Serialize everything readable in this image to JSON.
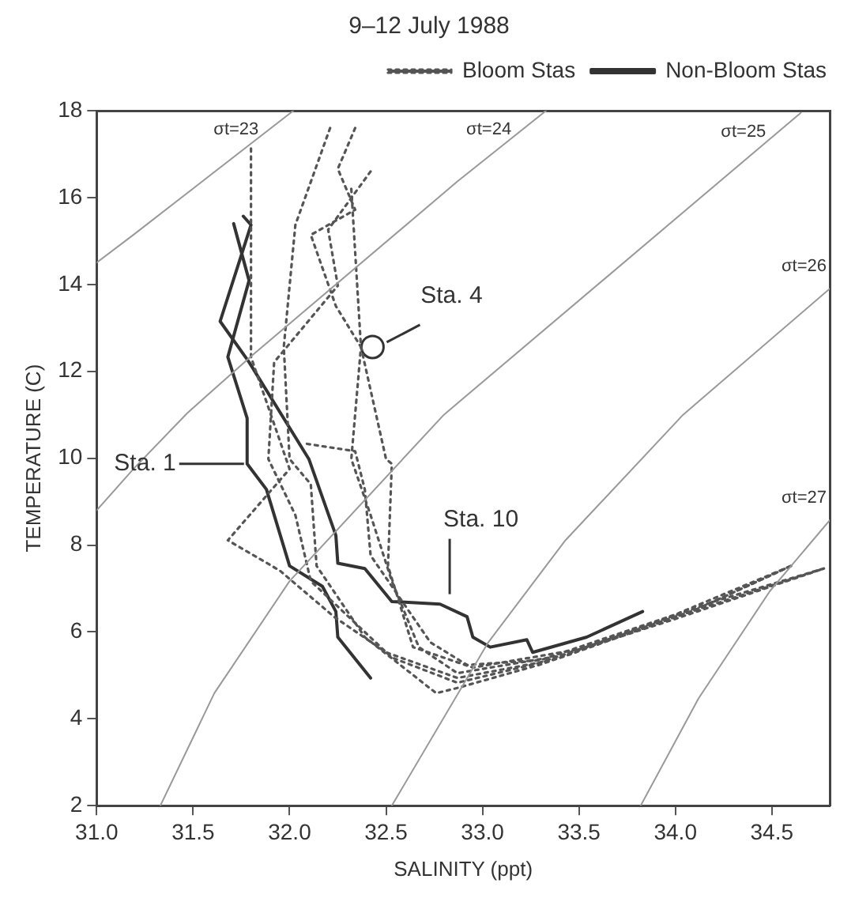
{
  "chart_data": {
    "type": "line",
    "title": "9–12 July 1988",
    "xlabel": "SALINITY (ppt)",
    "ylabel": "TEMPERATURE (C)",
    "xlim": [
      31.0,
      34.8
    ],
    "ylim": [
      2,
      18
    ],
    "xticks": [
      {
        "value": 31,
        "label": "31.0"
      },
      {
        "value": 31.5,
        "label": "31.5"
      },
      {
        "value": 32,
        "label": "32.0"
      },
      {
        "value": 32.5,
        "label": "32.5"
      },
      {
        "value": 33,
        "label": "33.0"
      },
      {
        "value": 33.5,
        "label": "33.5"
      },
      {
        "value": 34,
        "label": "34.0"
      },
      {
        "value": 34.5,
        "label": "34.5"
      }
    ],
    "yticks": [
      2,
      4,
      6,
      8,
      10,
      12,
      14,
      16,
      18
    ],
    "legend": "top right",
    "series": [
      {
        "name": "σt=23",
        "color": "#999999",
        "x": [
          31.0,
          31.19,
          32.02
        ],
        "values": [
          14.5,
          15.14,
          18
        ]
      },
      {
        "name": "σt=24",
        "color": "#999999",
        "x": [
          31.0,
          31.19,
          31.47,
          31.81,
          32.87,
          33.33
        ],
        "values": [
          8.8,
          9.75,
          11.04,
          12.38,
          16.37,
          18
        ]
      },
      {
        "name": "σt=25",
        "color": "#999999",
        "x": [
          31.33,
          31.61,
          32.0,
          32.8,
          34.65
        ],
        "values": [
          2,
          4.59,
          7.17,
          11.0,
          17.95
        ]
      },
      {
        "name": "σt=26",
        "color": "#999999",
        "x": [
          32.53,
          33.03,
          33.43,
          34.04,
          34.8
        ],
        "values": [
          2,
          5.76,
          8.11,
          11.0,
          13.9
        ]
      },
      {
        "name": "σt=27",
        "color": "#999999",
        "x": [
          33.82,
          34.12,
          34.49,
          34.8
        ],
        "values": [
          2,
          4.47,
          6.94,
          8.57
        ]
      },
      {
        "name": "Bloom Stas",
        "color": "#555555",
        "line_style": "dotted",
        "x": [
          31.8,
          31.8,
          32.0,
          31.68,
          31.95,
          32.23,
          32.5,
          32.87,
          33.3,
          34.0,
          34.77
        ],
        "values": [
          17.13,
          12.33,
          9.75,
          8.11,
          7.41,
          6.35,
          5.53,
          4.94,
          5.3,
          6.3,
          7.46
        ]
      },
      {
        "color": "#555555",
        "line_style": "dotted",
        "x": [
          32.34,
          32.25,
          32.34,
          32.11,
          32.24,
          32.37,
          32.32,
          32.42,
          32.53,
          32.67,
          32.87,
          33.4,
          34.1,
          34.6
        ],
        "values": [
          17.6,
          16.66,
          15.72,
          15.14,
          13.5,
          12.56,
          9.98,
          8.69,
          7.17,
          5.65,
          5.05,
          5.45,
          6.5,
          7.52
        ]
      },
      {
        "color": "#555555",
        "line_style": "dotted",
        "x": [
          32.21,
          32.03,
          31.97,
          32.0,
          32.11,
          32.14,
          32.39,
          32.76,
          32.87,
          33.3,
          34.0,
          34.77
        ],
        "values": [
          17.6,
          15.37,
          12.56,
          9.98,
          9.4,
          7.52,
          5.88,
          4.59,
          4.71,
          5.25,
          6.35,
          7.46
        ]
      },
      {
        "color": "#555555",
        "line_style": "dotted",
        "x": [
          32.42,
          32.2,
          32.25,
          31.92,
          31.89,
          32.03,
          32.11,
          32.53,
          32.87,
          33.4,
          34.1,
          34.6
        ],
        "values": [
          16.6,
          15.26,
          13.97,
          12.21,
          9.98,
          8.69,
          7.17,
          5.41,
          4.83,
          5.4,
          6.5,
          7.52
        ]
      },
      {
        "color": "#555555",
        "line_style": "dotted",
        "x": [
          32.32,
          32.37,
          32.5,
          32.53,
          32.51,
          32.64,
          32.95,
          33.5,
          34.2,
          34.77
        ],
        "values": [
          16.2,
          12.56,
          9.98,
          9.87,
          7.52,
          5.65,
          5.18,
          5.6,
          6.7,
          7.46
        ]
      },
      {
        "color": "#555555",
        "line_style": "dotted",
        "x": [
          32.09,
          32.34,
          32.39,
          32.42,
          32.73,
          32.92,
          33.3,
          34.0,
          34.6
        ],
        "values": [
          10.33,
          10.16,
          9.28,
          7.76,
          5.76,
          5.24,
          5.35,
          6.4,
          7.52
        ]
      },
      {
        "name": "Non-Bloom Stas",
        "color": "#333333",
        "line_style": "solid",
        "x": [
          31.71,
          31.79,
          31.68,
          31.78,
          31.78,
          31.88,
          32.0,
          32.17,
          32.24,
          32.25,
          32.42
        ],
        "values": [
          15.4,
          14.09,
          12.33,
          10.92,
          9.87,
          9.28,
          7.52,
          7.05,
          6.47,
          5.88,
          4.94
        ]
      },
      {
        "color": "#333333",
        "line_style": "solid",
        "x": [
          31.76,
          31.8,
          31.64,
          31.79,
          32.1,
          32.24,
          32.25,
          32.39,
          32.53,
          32.78,
          32.92,
          32.95,
          33.04,
          33.23,
          33.26,
          33.54,
          33.83
        ],
        "values": [
          15.57,
          15.37,
          13.15,
          12.21,
          9.98,
          8.22,
          7.58,
          7.46,
          6.7,
          6.64,
          6.35,
          5.88,
          5.65,
          5.82,
          5.53,
          5.88,
          6.47
        ]
      },
      {
        "type": "scatter",
        "marker": "circle",
        "color": "#333333",
        "x": [
          32.43
        ],
        "values": [
          12.56
        ]
      }
    ],
    "annotations": [
      {
        "text": "Sta. 4",
        "x": 32.43,
        "y": 12.56
      },
      {
        "text": "Sta. 1",
        "x": 31.78,
        "y": 9.87
      },
      {
        "text": "Sta. 10",
        "x": 32.83,
        "y": 6.76
      }
    ]
  }
}
